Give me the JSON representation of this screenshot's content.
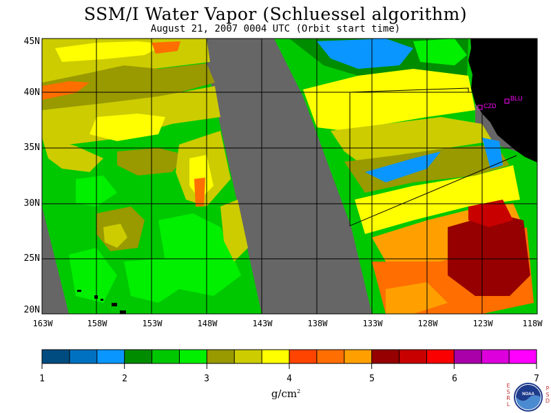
{
  "title": "SSM/I Water Vapor (Schluessel algorithm)",
  "subtitle": "August 21, 2007  0004 UTC  (Orbit start time)",
  "map": {
    "lat_labels": [
      "45N",
      "40N",
      "35N",
      "30N",
      "25N",
      "20N"
    ],
    "lon_labels": [
      "163W",
      "158W",
      "153W",
      "148W",
      "143W",
      "138W",
      "133W",
      "128W",
      "123W",
      "118W"
    ],
    "stations": [
      {
        "name": "CZD",
        "color": "#ff00ff"
      },
      {
        "name": "BLU",
        "color": "#ff00ff"
      }
    ],
    "colors": {
      "missing": "#666666",
      "land": "#000000",
      "grid": "#000000"
    }
  },
  "colorbar": {
    "tick_labels": [
      "1",
      "2",
      "3",
      "4",
      "5",
      "6",
      "7"
    ],
    "units": "g/cm",
    "units_exponent": "2",
    "colors": [
      "#004c80",
      "#0070c0",
      "#0a96ff",
      "#008c00",
      "#00c800",
      "#00f000",
      "#999900",
      "#cccc00",
      "#ffff00",
      "#ff4400",
      "#ff6e00",
      "#ffa000",
      "#960000",
      "#c80000",
      "#fa0000",
      "#aa00aa",
      "#dd00dd",
      "#ff00ff"
    ]
  },
  "logo": {
    "left_text": "ESRL",
    "right_text": "PSD",
    "center_text": "NOAA"
  }
}
